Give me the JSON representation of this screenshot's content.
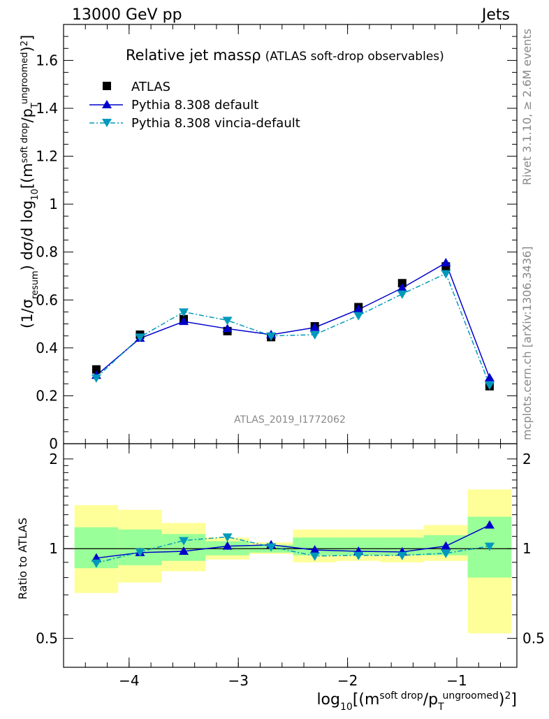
{
  "header": {
    "left": "13000 GeV pp",
    "right": "Jets"
  },
  "side_labels": {
    "rivet": "Rivet 3.1.10, ≥ 2.6M events",
    "mcplots": "mcplots.cern.ch [arXiv:1306.3436]"
  },
  "plot_title": {
    "main": "Relative jet massρ",
    "sub": "(ATLAS soft-drop observables)"
  },
  "analysis_id": "ATLAS_2019_I1772062",
  "axes": {
    "ylabel_main": "(1/σ_resum) dσ/d log10[(m^soft drop/pT^ungroomed)2]",
    "ylabel_ratio": "Ratio to ATLAS",
    "xlabel": "log10[(m^soft drop/pT^ungroomed)2]"
  },
  "legend": [
    {
      "label": "ATLAS",
      "marker": "square",
      "color": "#000000"
    },
    {
      "label": "Pythia 8.308 default",
      "marker": "triangle-up",
      "color": "#0000cc"
    },
    {
      "label": "Pythia 8.308 vincia-default",
      "marker": "triangle-down",
      "color": "#0099bb"
    }
  ],
  "chart_data": {
    "type": "line",
    "x": [
      -4.3,
      -3.9,
      -3.5,
      -3.1,
      -2.7,
      -2.3,
      -1.9,
      -1.5,
      -1.1,
      -0.7
    ],
    "bin_edges": [
      -4.5,
      -4.1,
      -3.7,
      -3.3,
      -2.9,
      -2.5,
      -2.1,
      -1.7,
      -1.3,
      -0.9,
      -0.5
    ],
    "xlim": [
      -4.6,
      -0.45
    ],
    "ylim": [
      0,
      1.75
    ],
    "ratio_ylim": [
      0.4,
      2.25
    ],
    "x_ticks": [
      -4,
      -3,
      -2,
      -1
    ],
    "x_tick_labels": [
      "−4",
      "−3",
      "−2",
      "−1"
    ],
    "y_ticks": [
      0.2,
      0.4,
      0.6,
      0.8,
      1,
      1.2,
      1.4,
      1.6
    ],
    "y_tick_labels": [
      "0.2",
      "0.4",
      "0.6",
      "0.8",
      "1",
      "1.2",
      "1.4",
      "1.6"
    ],
    "y_zero_label": "0",
    "ratio_ticks": [
      0.5,
      1,
      2
    ],
    "ratio_tick_labels": [
      "0.5",
      "1",
      "2"
    ],
    "log_ratio_axis": true,
    "series": [
      {
        "name": "ATLAS",
        "values": [
          0.31,
          0.455,
          0.52,
          0.47,
          0.445,
          0.49,
          0.57,
          0.67,
          0.74,
          0.24
        ]
      },
      {
        "name": "Pythia 8.308 default",
        "values": [
          0.285,
          0.44,
          0.51,
          0.48,
          0.455,
          0.485,
          0.56,
          0.65,
          0.755,
          0.275
        ]
      },
      {
        "name": "Pythia 8.308 vincia-default",
        "values": [
          0.275,
          0.445,
          0.55,
          0.515,
          0.45,
          0.455,
          0.535,
          0.625,
          0.71,
          0.245
        ]
      }
    ],
    "ratio": {
      "default": [
        0.93,
        0.97,
        0.98,
        1.02,
        1.03,
        0.99,
        0.98,
        0.975,
        1.02,
        1.2
      ],
      "vincia": [
        0.895,
        0.975,
        1.065,
        1.095,
        1.015,
        0.945,
        0.95,
        0.95,
        0.965,
        1.02
      ],
      "band_outer_low": [
        0.71,
        0.77,
        0.84,
        0.92,
        0.96,
        0.9,
        0.91,
        0.9,
        0.91,
        0.52
      ],
      "band_outer_high": [
        1.4,
        1.35,
        1.22,
        1.09,
        1.05,
        1.16,
        1.16,
        1.16,
        1.2,
        1.58
      ],
      "band_inner_low": [
        0.86,
        0.88,
        0.91,
        0.95,
        0.97,
        0.95,
        0.95,
        0.95,
        0.95,
        0.8
      ],
      "band_inner_high": [
        1.18,
        1.16,
        1.12,
        1.06,
        1.03,
        1.09,
        1.09,
        1.09,
        1.11,
        1.28
      ],
      "band_colors": {
        "outer": "#ffff99",
        "inner": "#99ff99"
      }
    }
  }
}
